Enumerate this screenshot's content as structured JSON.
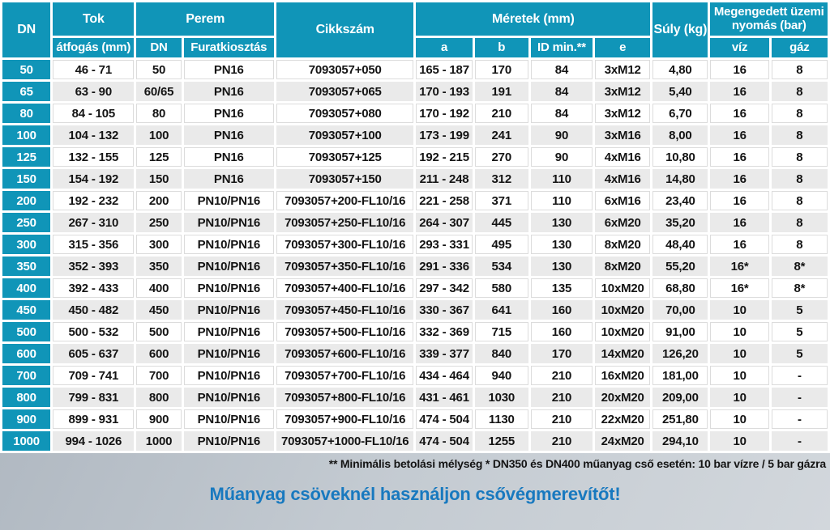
{
  "colors": {
    "header_teal": "#1095b8",
    "row_stripe_gray": "#eaeaea",
    "slogan_blue": "#1879bf",
    "background_gray": "#b5bec6"
  },
  "table": {
    "headers": {
      "dn": "DN",
      "tok": "Tok",
      "tok_atfogas": "átfogás (mm)",
      "perem": "Perem",
      "perem_dn": "DN",
      "furatkiosztas": "Furatkiosztás",
      "cikkszam": "Cikkszám",
      "meretek": "Méretek (mm)",
      "a": "a",
      "b": "b",
      "id_min": "ID min.**",
      "e": "e",
      "suly": "Súly (kg)",
      "nyomas": "Megengedett üzemi nyomás (bar)",
      "viz": "víz",
      "gaz": "gáz"
    },
    "column_keys": [
      "dn",
      "tok-atfogas",
      "perem-dn",
      "furatkiosztas",
      "cikkszam",
      "a",
      "b",
      "id-min",
      "e",
      "suly",
      "viz",
      "gaz"
    ],
    "rows": [
      [
        "50",
        "46 - 71",
        "50",
        "PN16",
        "7093057+050",
        "165 - 187",
        "170",
        "84",
        "3xM12",
        "4,80",
        "16",
        "8"
      ],
      [
        "65",
        "63 - 90",
        "60/65",
        "PN16",
        "7093057+065",
        "170 - 193",
        "191",
        "84",
        "3xM12",
        "5,40",
        "16",
        "8"
      ],
      [
        "80",
        "84 - 105",
        "80",
        "PN16",
        "7093057+080",
        "170 - 192",
        "210",
        "84",
        "3xM12",
        "6,70",
        "16",
        "8"
      ],
      [
        "100",
        "104 - 132",
        "100",
        "PN16",
        "7093057+100",
        "173 - 199",
        "241",
        "90",
        "3xM16",
        "8,00",
        "16",
        "8"
      ],
      [
        "125",
        "132 - 155",
        "125",
        "PN16",
        "7093057+125",
        "192 - 215",
        "270",
        "90",
        "4xM16",
        "10,80",
        "16",
        "8"
      ],
      [
        "150",
        "154 - 192",
        "150",
        "PN16",
        "7093057+150",
        "211 - 248",
        "312",
        "110",
        "4xM16",
        "14,80",
        "16",
        "8"
      ],
      [
        "200",
        "192 - 232",
        "200",
        "PN10/PN16",
        "7093057+200-FL10/16",
        "221 - 258",
        "371",
        "110",
        "6xM16",
        "23,40",
        "16",
        "8"
      ],
      [
        "250",
        "267 - 310",
        "250",
        "PN10/PN16",
        "7093057+250-FL10/16",
        "264 - 307",
        "445",
        "130",
        "6xM20",
        "35,20",
        "16",
        "8"
      ],
      [
        "300",
        "315 - 356",
        "300",
        "PN10/PN16",
        "7093057+300-FL10/16",
        "293 - 331",
        "495",
        "130",
        "8xM20",
        "48,40",
        "16",
        "8"
      ],
      [
        "350",
        "352 - 393",
        "350",
        "PN10/PN16",
        "7093057+350-FL10/16",
        "291 - 336",
        "534",
        "130",
        "8xM20",
        "55,20",
        "16*",
        "8*"
      ],
      [
        "400",
        "392 - 433",
        "400",
        "PN10/PN16",
        "7093057+400-FL10/16",
        "297 - 342",
        "580",
        "135",
        "10xM20",
        "68,80",
        "16*",
        "8*"
      ],
      [
        "450",
        "450 - 482",
        "450",
        "PN10/PN16",
        "7093057+450-FL10/16",
        "330 - 367",
        "641",
        "160",
        "10xM20",
        "70,00",
        "10",
        "5"
      ],
      [
        "500",
        "500 - 532",
        "500",
        "PN10/PN16",
        "7093057+500-FL10/16",
        "332 - 369",
        "715",
        "160",
        "10xM20",
        "91,00",
        "10",
        "5"
      ],
      [
        "600",
        "605 - 637",
        "600",
        "PN10/PN16",
        "7093057+600-FL10/16",
        "339 - 377",
        "840",
        "170",
        "14xM20",
        "126,20",
        "10",
        "5"
      ],
      [
        "700",
        "709 - 741",
        "700",
        "PN10/PN16",
        "7093057+700-FL10/16",
        "434 - 464",
        "940",
        "210",
        "16xM20",
        "181,00",
        "10",
        "-"
      ],
      [
        "800",
        "799 - 831",
        "800",
        "PN10/PN16",
        "7093057+800-FL10/16",
        "431 - 461",
        "1030",
        "210",
        "20xM20",
        "209,00",
        "10",
        "-"
      ],
      [
        "900",
        "899 - 931",
        "900",
        "PN10/PN16",
        "7093057+900-FL10/16",
        "474 - 504",
        "1130",
        "210",
        "22xM20",
        "251,80",
        "10",
        "-"
      ],
      [
        "1000",
        "994 - 1026",
        "1000",
        "PN10/PN16",
        "7093057+1000-FL10/16",
        "474 - 504",
        "1255",
        "210",
        "24xM20",
        "294,10",
        "10",
        "-"
      ]
    ]
  },
  "footnote": "** Minimális betolási mélység  * DN350 és DN400 műanyag cső esetén: 10 bar vízre / 5 bar gázra",
  "slogan": "Műanyag csöveknél használjon csővégmerevítőt!"
}
